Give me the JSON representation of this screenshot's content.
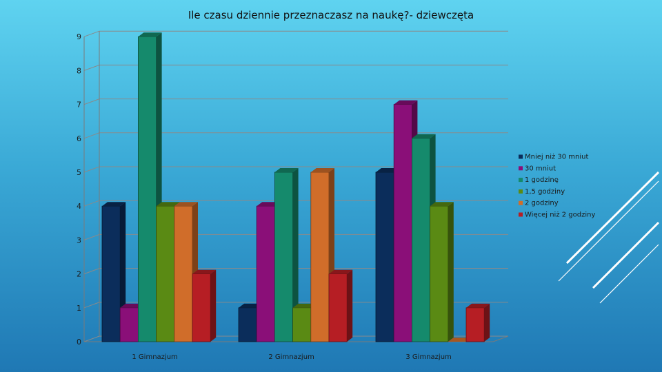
{
  "chart_data": {
    "type": "bar",
    "title": "Ile czasu dziennie przeznaczasz na naukę?- dziewczęta",
    "categories": [
      "1 Gimnazjum",
      "2 Gimnazjum",
      "3 Gimnazjum"
    ],
    "series": [
      {
        "name": "Mniej niż 30 mniut",
        "values": [
          4,
          1,
          5
        ],
        "color": "#0b2d5b"
      },
      {
        "name": "30 mniut",
        "values": [
          1,
          4,
          7
        ],
        "color": "#8a0f78"
      },
      {
        "name": "1 godzinę",
        "values": [
          9,
          5,
          6
        ],
        "color": "#158a6c"
      },
      {
        "name": "1,5 godziny",
        "values": [
          4,
          1,
          4
        ],
        "color": "#5a8a14"
      },
      {
        "name": "2 godziny",
        "values": [
          4,
          5,
          0
        ],
        "color": "#d06d2a"
      },
      {
        "name": "Więcej niż 2 godziny",
        "values": [
          2,
          2,
          1
        ],
        "color": "#b61e24"
      }
    ],
    "yticks": [
      "0",
      "1",
      "2",
      "3",
      "4",
      "5",
      "6",
      "7",
      "8",
      "9"
    ],
    "ylim": [
      0,
      9
    ],
    "grid": true,
    "legend_position": "right",
    "three_d": true
  }
}
